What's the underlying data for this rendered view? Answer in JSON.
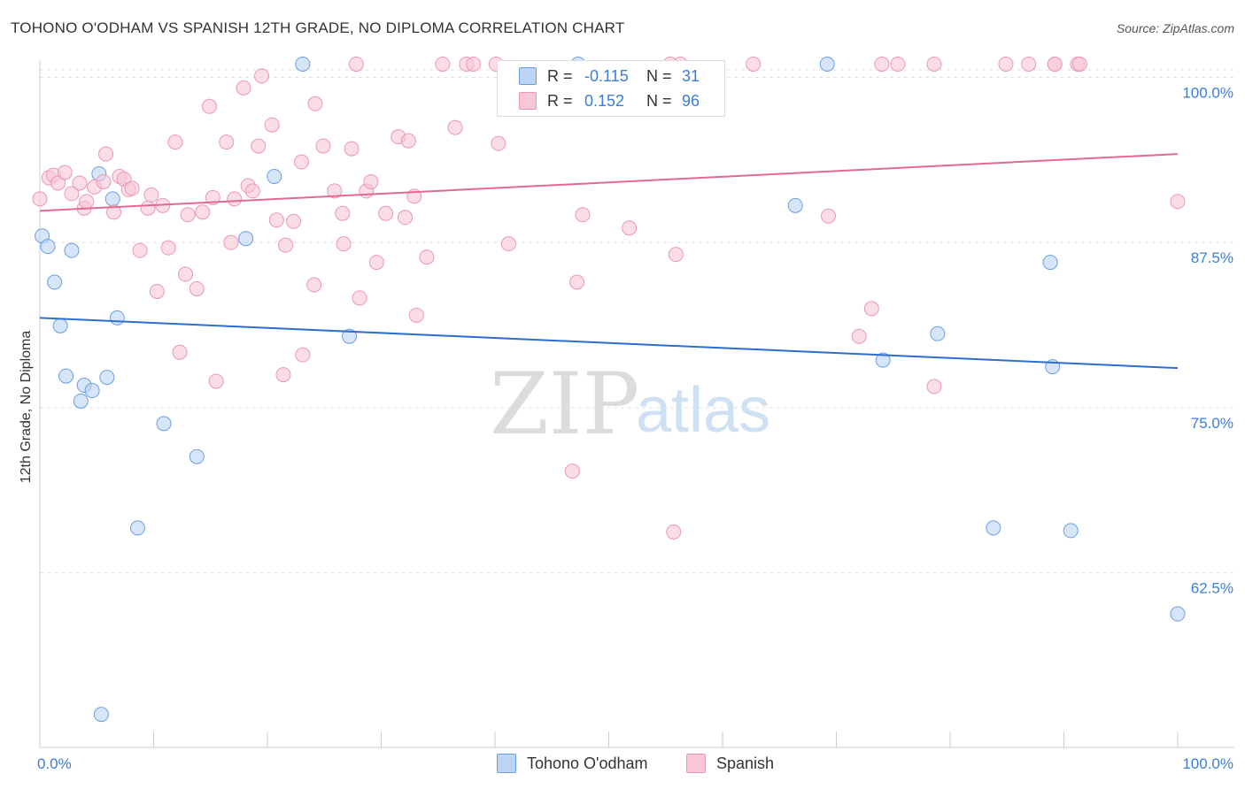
{
  "title": "TOHONO O'ODHAM VS SPANISH 12TH GRADE, NO DIPLOMA CORRELATION CHART",
  "source": "Source: ZipAtlas.com",
  "watermark": {
    "zip": "ZIP",
    "atlas": "atlas"
  },
  "colors": {
    "blue_fill": "#bcd4f5",
    "blue_stroke": "#6b9ee0",
    "blue_line": "#2d6fcc",
    "pink_fill": "#f9c6d6",
    "pink_stroke": "#eb98b2",
    "pink_line": "#e26a93",
    "accent_text": "#3b7dd8",
    "grid": "#e0e0e0"
  },
  "legend": {
    "blue": {
      "r_label": "R =",
      "r_value": "-0.115",
      "n_label": "N =",
      "n_value": "31"
    },
    "pink": {
      "r_label": "R =",
      "r_value": "0.152",
      "n_label": "N =",
      "n_value": "96"
    }
  },
  "bottom_legend": {
    "blue": "Tohono O'odham",
    "pink": "Spanish"
  },
  "chart_data": {
    "type": "scatter",
    "xlabel": "",
    "ylabel": "12th Grade, No Diploma",
    "xlim": [
      0,
      100
    ],
    "ylim": [
      50.5,
      101.5
    ],
    "x_tick_labels": {
      "left": "0.0%",
      "right": "100.0%"
    },
    "y_ticks": [
      {
        "value": 100,
        "label": "100.0%"
      },
      {
        "value": 87.5,
        "label": "87.5%"
      },
      {
        "value": 75,
        "label": "75.0%"
      },
      {
        "value": 62.5,
        "label": "62.5%"
      }
    ],
    "series": [
      {
        "name": "Tohono O'odham",
        "color": "blue",
        "R": -0.115,
        "N": 31,
        "trend": {
          "x": [
            0,
            100
          ],
          "y": [
            81.8,
            78.0
          ]
        },
        "points": [
          {
            "x": 0.2,
            "y": 88.0
          },
          {
            "x": 0.7,
            "y": 87.2
          },
          {
            "x": 1.3,
            "y": 84.5
          },
          {
            "x": 1.8,
            "y": 81.2
          },
          {
            "x": 2.3,
            "y": 77.4
          },
          {
            "x": 2.8,
            "y": 86.9
          },
          {
            "x": 3.6,
            "y": 75.5
          },
          {
            "x": 3.9,
            "y": 76.7
          },
          {
            "x": 4.6,
            "y": 76.3
          },
          {
            "x": 5.2,
            "y": 92.7
          },
          {
            "x": 5.4,
            "y": 51.8
          },
          {
            "x": 5.9,
            "y": 77.3
          },
          {
            "x": 6.4,
            "y": 90.8
          },
          {
            "x": 6.8,
            "y": 81.8
          },
          {
            "x": 8.6,
            "y": 65.9
          },
          {
            "x": 10.9,
            "y": 73.8
          },
          {
            "x": 13.8,
            "y": 71.3
          },
          {
            "x": 18.1,
            "y": 87.8
          },
          {
            "x": 20.6,
            "y": 92.5
          },
          {
            "x": 23.1,
            "y": 101.0
          },
          {
            "x": 27.2,
            "y": 80.4
          },
          {
            "x": 47.3,
            "y": 101.0
          },
          {
            "x": 66.4,
            "y": 90.3
          },
          {
            "x": 69.2,
            "y": 101.0
          },
          {
            "x": 74.1,
            "y": 78.6
          },
          {
            "x": 78.9,
            "y": 80.6
          },
          {
            "x": 83.8,
            "y": 65.9
          },
          {
            "x": 88.8,
            "y": 86.0
          },
          {
            "x": 89.0,
            "y": 78.1
          },
          {
            "x": 90.6,
            "y": 65.7
          },
          {
            "x": 100.0,
            "y": 59.4
          }
        ]
      },
      {
        "name": "Spanish",
        "color": "pink",
        "R": 0.152,
        "N": 96,
        "trend": {
          "x": [
            0,
            100
          ],
          "y": [
            89.9,
            94.2
          ]
        },
        "points": [
          {
            "x": 0.0,
            "y": 90.8
          },
          {
            "x": 0.8,
            "y": 92.4
          },
          {
            "x": 1.2,
            "y": 92.6
          },
          {
            "x": 1.6,
            "y": 92.0
          },
          {
            "x": 2.2,
            "y": 92.8
          },
          {
            "x": 2.8,
            "y": 91.2
          },
          {
            "x": 3.5,
            "y": 92.0
          },
          {
            "x": 3.9,
            "y": 90.1
          },
          {
            "x": 4.1,
            "y": 90.6
          },
          {
            "x": 4.8,
            "y": 91.7
          },
          {
            "x": 5.6,
            "y": 92.1
          },
          {
            "x": 5.8,
            "y": 94.2
          },
          {
            "x": 6.5,
            "y": 89.8
          },
          {
            "x": 7.0,
            "y": 92.5
          },
          {
            "x": 7.4,
            "y": 92.3
          },
          {
            "x": 7.8,
            "y": 91.5
          },
          {
            "x": 8.1,
            "y": 91.6
          },
          {
            "x": 8.8,
            "y": 86.9
          },
          {
            "x": 9.5,
            "y": 90.1
          },
          {
            "x": 9.8,
            "y": 91.1
          },
          {
            "x": 10.3,
            "y": 83.8
          },
          {
            "x": 10.8,
            "y": 90.3
          },
          {
            "x": 11.3,
            "y": 87.1
          },
          {
            "x": 11.9,
            "y": 95.1
          },
          {
            "x": 12.3,
            "y": 79.2
          },
          {
            "x": 12.8,
            "y": 85.1
          },
          {
            "x": 13.0,
            "y": 89.6
          },
          {
            "x": 13.8,
            "y": 84.0
          },
          {
            "x": 14.3,
            "y": 89.8
          },
          {
            "x": 14.9,
            "y": 97.8
          },
          {
            "x": 15.2,
            "y": 90.9
          },
          {
            "x": 15.5,
            "y": 77.0
          },
          {
            "x": 16.4,
            "y": 95.1
          },
          {
            "x": 16.8,
            "y": 87.5
          },
          {
            "x": 17.1,
            "y": 90.8
          },
          {
            "x": 17.9,
            "y": 99.2
          },
          {
            "x": 18.3,
            "y": 91.8
          },
          {
            "x": 18.7,
            "y": 91.4
          },
          {
            "x": 19.2,
            "y": 94.8
          },
          {
            "x": 19.5,
            "y": 100.1
          },
          {
            "x": 20.4,
            "y": 96.4
          },
          {
            "x": 20.8,
            "y": 89.2
          },
          {
            "x": 21.4,
            "y": 77.5
          },
          {
            "x": 21.6,
            "y": 87.3
          },
          {
            "x": 22.3,
            "y": 89.1
          },
          {
            "x": 23.0,
            "y": 93.6
          },
          {
            "x": 23.1,
            "y": 79.0
          },
          {
            "x": 24.1,
            "y": 84.3
          },
          {
            "x": 24.2,
            "y": 98.0
          },
          {
            "x": 24.9,
            "y": 94.8
          },
          {
            "x": 25.9,
            "y": 91.4
          },
          {
            "x": 26.6,
            "y": 89.7
          },
          {
            "x": 26.7,
            "y": 87.4
          },
          {
            "x": 27.4,
            "y": 94.6
          },
          {
            "x": 27.8,
            "y": 101.0
          },
          {
            "x": 28.1,
            "y": 83.3
          },
          {
            "x": 28.7,
            "y": 91.4
          },
          {
            "x": 29.1,
            "y": 92.1
          },
          {
            "x": 29.6,
            "y": 86.0
          },
          {
            "x": 30.4,
            "y": 89.7
          },
          {
            "x": 31.5,
            "y": 95.5
          },
          {
            "x": 32.1,
            "y": 89.4
          },
          {
            "x": 32.4,
            "y": 95.2
          },
          {
            "x": 32.9,
            "y": 91.0
          },
          {
            "x": 33.1,
            "y": 82.0
          },
          {
            "x": 34.0,
            "y": 86.4
          },
          {
            "x": 35.4,
            "y": 101.0
          },
          {
            "x": 36.5,
            "y": 96.2
          },
          {
            "x": 37.5,
            "y": 101.0
          },
          {
            "x": 38.1,
            "y": 101.0
          },
          {
            "x": 40.1,
            "y": 101.0
          },
          {
            "x": 40.3,
            "y": 95.0
          },
          {
            "x": 41.2,
            "y": 87.4
          },
          {
            "x": 46.8,
            "y": 70.2
          },
          {
            "x": 47.2,
            "y": 84.5
          },
          {
            "x": 47.7,
            "y": 89.6
          },
          {
            "x": 51.8,
            "y": 88.6
          },
          {
            "x": 55.4,
            "y": 101.0
          },
          {
            "x": 55.7,
            "y": 65.6
          },
          {
            "x": 55.9,
            "y": 86.6
          },
          {
            "x": 56.3,
            "y": 101.0
          },
          {
            "x": 62.7,
            "y": 101.0
          },
          {
            "x": 69.3,
            "y": 89.5
          },
          {
            "x": 72.0,
            "y": 80.4
          },
          {
            "x": 73.1,
            "y": 82.5
          },
          {
            "x": 74.0,
            "y": 101.0
          },
          {
            "x": 75.4,
            "y": 101.0
          },
          {
            "x": 78.6,
            "y": 101.0
          },
          {
            "x": 78.6,
            "y": 76.6
          },
          {
            "x": 84.9,
            "y": 101.0
          },
          {
            "x": 86.9,
            "y": 101.0
          },
          {
            "x": 89.2,
            "y": 101.0
          },
          {
            "x": 89.2,
            "y": 101.0
          },
          {
            "x": 91.2,
            "y": 101.0
          },
          {
            "x": 91.4,
            "y": 101.0
          },
          {
            "x": 100.0,
            "y": 90.6
          }
        ]
      }
    ]
  }
}
